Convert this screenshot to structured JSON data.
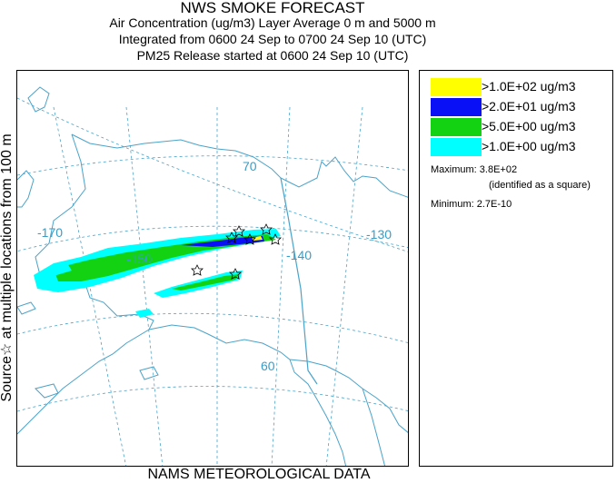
{
  "header": {
    "title": "NWS SMOKE FORECAST",
    "line2": "Air Concentration (ug/m3) Layer Average    0 m and  5000 m",
    "line3": "Integrated from 0600 24 Sep to 0700 24 Sep 10 (UTC)",
    "line4": "PM25 Release started at 0600 24 Sep 10 (UTC)"
  },
  "side_label": "Source☆  at multiple locations  from   100 m",
  "footer": "NAMS METEOROLOGICAL DATA",
  "map": {
    "lon_labels": [
      "-170",
      "-150",
      "-140",
      "-130"
    ],
    "lat_labels": [
      "70",
      "60"
    ],
    "colors": {
      "coast": "#4aa3c9",
      "graticule": "#4aa3c9",
      "label": "#3a9cc6"
    }
  },
  "legend": {
    "items": [
      {
        "label": ">1.0E+02 ug/m3",
        "color": "#ffff00"
      },
      {
        "label": ">2.0E+01 ug/m3",
        "color": "#0a10f5"
      },
      {
        "label": ">5.0E+00 ug/m3",
        "color": "#12d212"
      },
      {
        "label": ">1.0E+00 ug/m3",
        "color": "#00ffff"
      }
    ],
    "maximum": "Maximum: 3.8E+02",
    "maximum_note": "(identified as a square)",
    "minimum": "Minimum: 2.7E-10"
  }
}
